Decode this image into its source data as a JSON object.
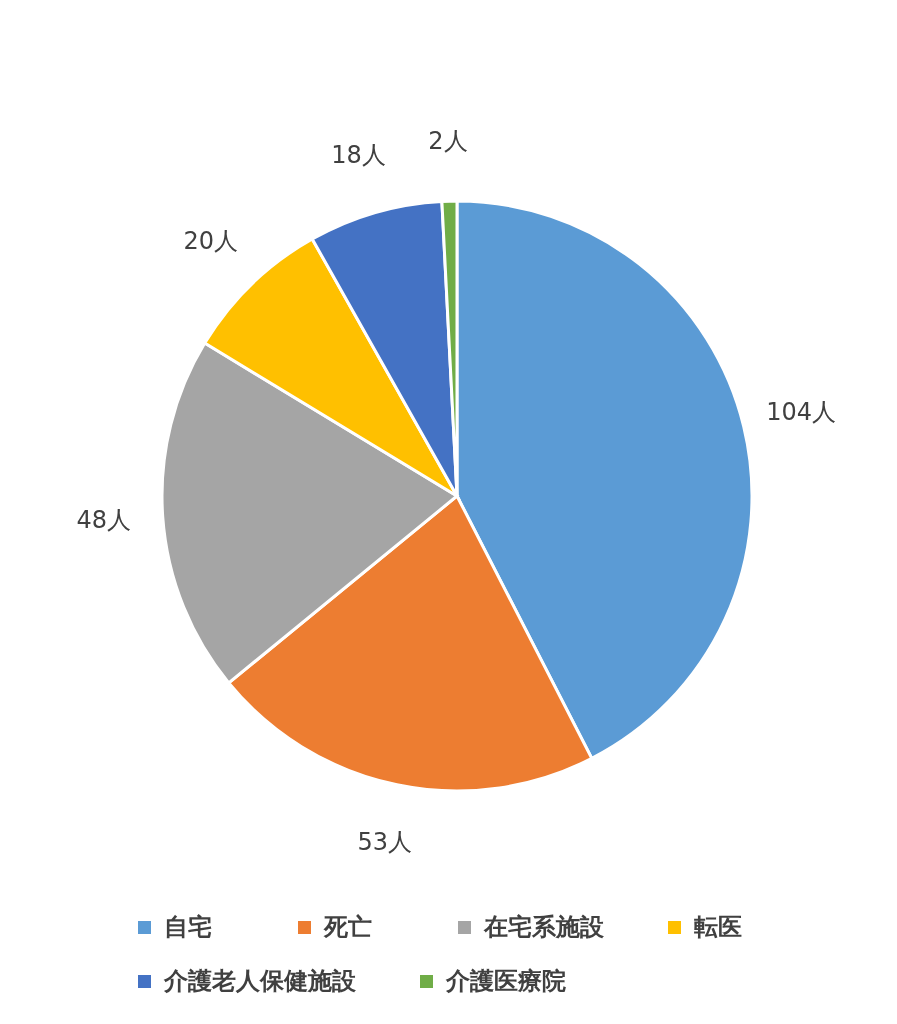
{
  "chart_data": {
    "type": "pie",
    "categories": [
      "自宅",
      "死亡",
      "在宅系施設",
      "転医",
      "介護老人保健施設",
      "介護医療院"
    ],
    "values": [
      104,
      53,
      48,
      20,
      18,
      2
    ],
    "colors": [
      "#5b9bd5",
      "#ed7d31",
      "#a5a5a5",
      "#ffc000",
      "#4472c4",
      "#70ad47"
    ],
    "value_labels": [
      "104人",
      "53人",
      "48人",
      "20人",
      "18人",
      "2人"
    ],
    "legend": "bottom"
  }
}
